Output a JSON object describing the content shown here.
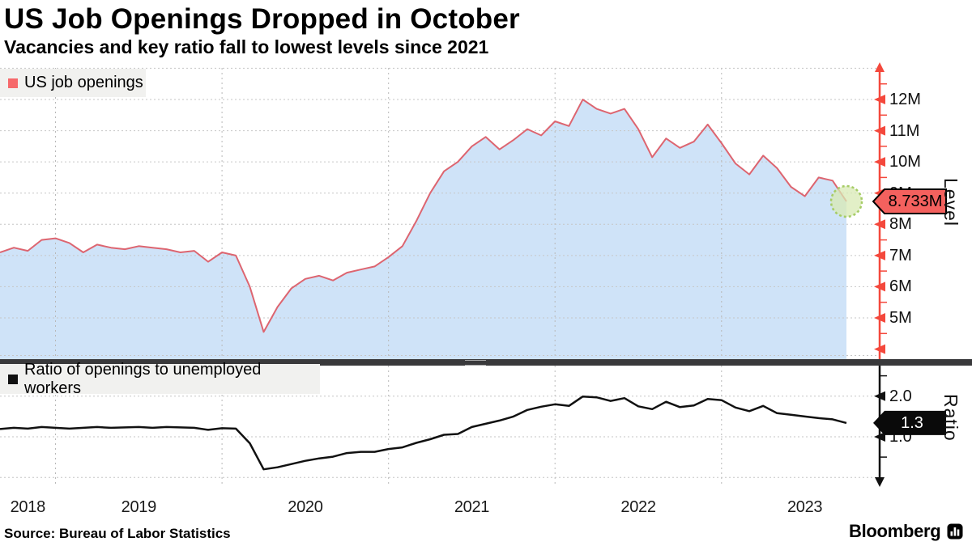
{
  "header": {
    "title": "US Job Openings Dropped in October",
    "subtitle": "Vacancies and key ratio fall to lowest levels since 2021"
  },
  "footer": {
    "source": "Source: Bureau of Labor Statistics",
    "brand": "Bloomberg"
  },
  "colors": {
    "line_top": "#dd6570",
    "area_fill": "#cfe3f8",
    "axis_top": "#f4483c",
    "legend_top_swatch": "#f6696b",
    "callout_top_bg": "#f4615e",
    "line_bottom": "#111111",
    "axis_bottom": "#111111",
    "grid_vertical": "#b8b8b8",
    "grid_horizontal": "#c6c6c6",
    "legend_bg": "#f1f1ef",
    "highlight_fill": "#d8eab4",
    "highlight_stroke": "#a6cc66",
    "callout_bottom_bg": "#0a0a0a",
    "divider": "#39393b"
  },
  "x_axis": {
    "year_labels": [
      "2018",
      "2019",
      "2020",
      "2021",
      "2022",
      "2023"
    ]
  },
  "chart_data": [
    {
      "type": "area",
      "legend": "US job openings",
      "ylabel": "Level",
      "x_unit": "month",
      "x_start": "2018-09",
      "x_end": "2023-10",
      "ylim": [
        4,
        13
      ],
      "grid": true,
      "legend_position": "top-left",
      "last_label": "8.733M",
      "yticks": [
        {
          "v": 5,
          "label": "5M"
        },
        {
          "v": 6,
          "label": "6M"
        },
        {
          "v": 7,
          "label": "7M"
        },
        {
          "v": 8,
          "label": "8M"
        },
        {
          "v": 9,
          "label": "9M"
        },
        {
          "v": 10,
          "label": "10M"
        },
        {
          "v": 11,
          "label": "11M"
        },
        {
          "v": 12,
          "label": "12M"
        }
      ],
      "values_millions": [
        7.1,
        7.25,
        7.15,
        7.5,
        7.55,
        7.4,
        7.1,
        7.35,
        7.25,
        7.2,
        7.3,
        7.25,
        7.2,
        7.1,
        7.15,
        6.8,
        7.1,
        7.0,
        6.0,
        4.55,
        5.35,
        5.95,
        6.25,
        6.35,
        6.2,
        6.45,
        6.55,
        6.65,
        6.95,
        7.3,
        8.1,
        9.0,
        9.7,
        10.0,
        10.5,
        10.8,
        10.4,
        10.7,
        11.05,
        10.85,
        11.3,
        11.15,
        12.0,
        11.7,
        11.55,
        11.7,
        11.05,
        10.15,
        10.75,
        10.45,
        10.65,
        11.2,
        10.6,
        9.95,
        9.6,
        10.2,
        9.8,
        9.2,
        8.9,
        9.5,
        9.4,
        8.733
      ]
    },
    {
      "type": "line",
      "legend": "Ratio of openings to unemployed workers",
      "ylabel": "Ratio",
      "x_unit": "month",
      "x_start": "2018-09",
      "x_end": "2023-10",
      "ylim": [
        0,
        2.5
      ],
      "grid": true,
      "legend_position": "top-left",
      "last_label": "1.3",
      "yticks": [
        {
          "v": 1,
          "label": "1.0"
        },
        {
          "v": 2,
          "label": "2.0"
        }
      ],
      "values": [
        1.19,
        1.22,
        1.2,
        1.24,
        1.22,
        1.2,
        1.22,
        1.24,
        1.22,
        1.23,
        1.24,
        1.22,
        1.24,
        1.23,
        1.22,
        1.17,
        1.21,
        1.2,
        0.84,
        0.2,
        0.25,
        0.33,
        0.41,
        0.47,
        0.51,
        0.6,
        0.63,
        0.63,
        0.7,
        0.74,
        0.85,
        0.94,
        1.05,
        1.07,
        1.24,
        1.32,
        1.4,
        1.5,
        1.66,
        1.74,
        1.8,
        1.76,
        1.99,
        1.97,
        1.88,
        1.95,
        1.75,
        1.68,
        1.86,
        1.73,
        1.77,
        1.93,
        1.9,
        1.72,
        1.63,
        1.76,
        1.58,
        1.54,
        1.5,
        1.46,
        1.43,
        1.34
      ]
    }
  ]
}
